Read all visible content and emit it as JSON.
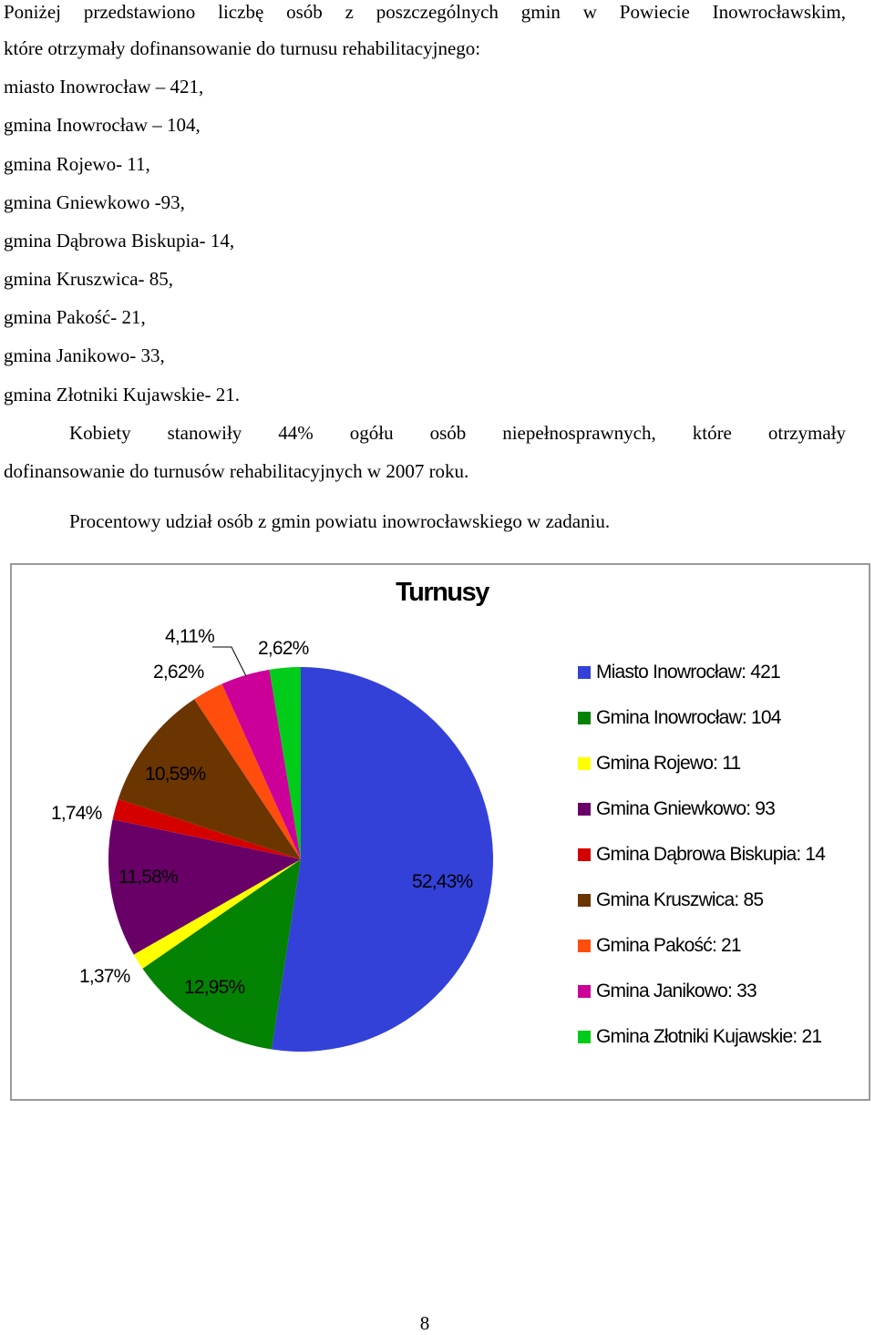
{
  "intro": {
    "line1": "Poniżej przedstawiono liczbę osób z poszczególnych gmin w Powiecie Inowrocławskim,",
    "line2": "które otrzymały dofinansowanie do turnusu rehabilitacyjnego:",
    "items": [
      "miasto Inowrocław – 421,",
      "gmina Inowrocław – 104,",
      "gmina Rojewo- 11,",
      "gmina Gniewkowo -93,",
      "gmina Dąbrowa Biskupia- 14,",
      "gmina Kruszwica- 85,",
      "gmina Pakość- 21,",
      "gmina Janikowo- 33,",
      "gmina Złotniki Kujawskie- 21."
    ]
  },
  "paragraph": {
    "line1": "Kobiety stanowiły 44% ogółu osób niepełnosprawnych, które otrzymały",
    "line2": "dofinansowanie do turnusów rehabilitacyjnych w 2007 roku."
  },
  "chart_caption": "Procentowy udział osób z gmin powiatu inowrocławskiego w zadaniu.",
  "chart_data": {
    "type": "pie",
    "title": "Turnusy",
    "legend_position": "right",
    "categories": [
      "Miasto Inowrocław",
      "Gmina Inowrocław",
      "Gmina Rojewo",
      "Gmina Gniewkowo",
      "Gmina Dąbrowa Biskupia",
      "Gmina Kruszwica",
      "Gmina Pakość",
      "Gmina Janikowo",
      "Gmina Złotniki Kujawskie"
    ],
    "values": [
      421,
      104,
      11,
      93,
      14,
      85,
      21,
      33,
      21
    ],
    "legend_labels": [
      "Miasto Inowrocław: 421",
      "Gmina Inowrocław: 104",
      "Gmina Rojewo: 11",
      "Gmina Gniewkowo: 93",
      "Gmina Dąbrowa Biskupia: 14",
      "Gmina Kruszwica: 85",
      "Gmina Pakość: 21",
      "Gmina Janikowo: 33",
      "Gmina Złotniki Kujawskie: 21"
    ],
    "percent_labels": [
      "52,43%",
      "12,95%",
      "1,37%",
      "11,58%",
      "1,74%",
      "10,59%",
      "2,62%",
      "4,11%",
      "2,62%"
    ],
    "colors": [
      "#3341d9",
      "#038203",
      "#ffff00",
      "#680068",
      "#d40000",
      "#6b3500",
      "#ff4d0d",
      "#cc0099",
      "#00cc19"
    ]
  },
  "page_number": "8"
}
